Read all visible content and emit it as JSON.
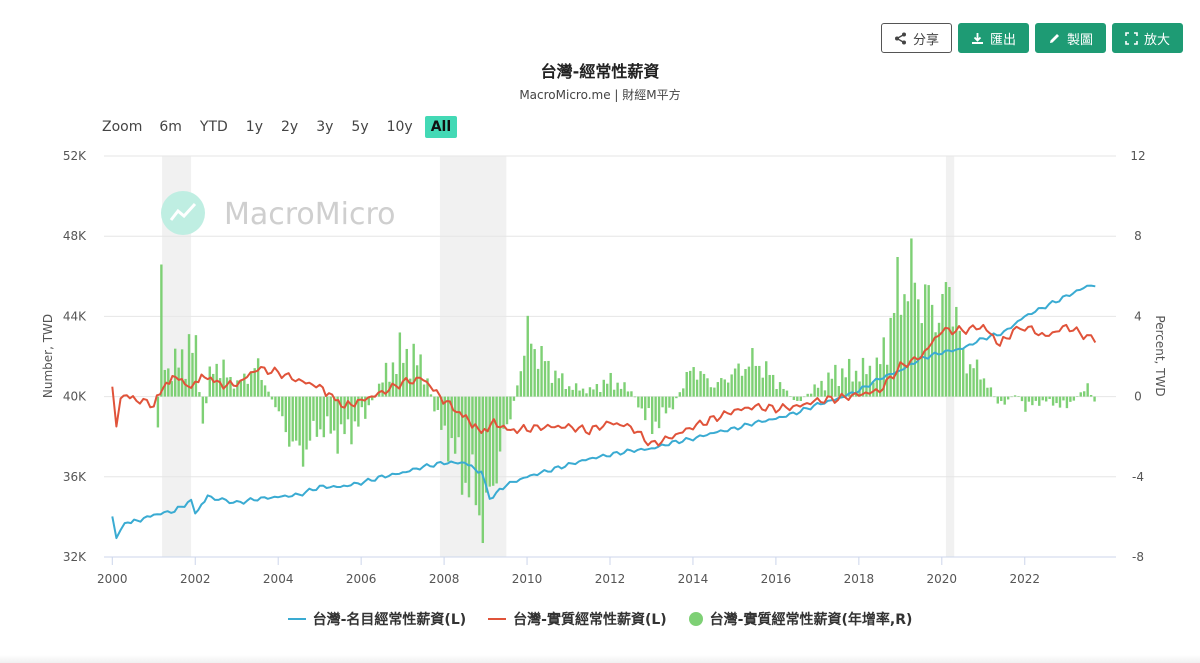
{
  "toolbar": {
    "share_label": "分享",
    "export_label": "匯出",
    "draw_label": "製圖",
    "expand_label": "放大",
    "accent": "#1e9b74"
  },
  "range_selector": {
    "zoom_label": "Zoom",
    "buttons": [
      "6m",
      "YTD",
      "1y",
      "2y",
      "3y",
      "5y",
      "10y",
      "All"
    ],
    "active": "All"
  },
  "watermark": "MacroMicro",
  "chart_data": {
    "type": "line",
    "title": "台灣-經常性薪資",
    "subtitle": "MacroMicro.me | 財經M平方",
    "ylabel_left": "Number, TWD",
    "ylabel_right": "Percent, TWD",
    "ylim_left": [
      32000,
      52000
    ],
    "ylim_right": [
      -8,
      12
    ],
    "yticks_left": [
      "32K",
      "36K",
      "40K",
      "44K",
      "48K",
      "52K"
    ],
    "yticks_right": [
      "-8",
      "-4",
      "0",
      "4",
      "8",
      "12"
    ],
    "xlim": [
      1999.8,
      2024.2
    ],
    "xticks": [
      "2000",
      "2002",
      "2004",
      "2006",
      "2008",
      "2010",
      "2012",
      "2014",
      "2016",
      "2018",
      "2020",
      "2022"
    ],
    "recessions": [
      [
        2001.2,
        2001.9
      ],
      [
        2007.9,
        2009.5
      ],
      [
        2020.1,
        2020.3
      ]
    ],
    "grid": "horizontal",
    "legend_position": "bottom",
    "series": [
      {
        "name": "台灣-名目經常性薪資(L)",
        "axis": "left",
        "kind": "line",
        "color": "#3aabd2",
        "points": [
          [
            2000.0,
            34100
          ],
          [
            2000.1,
            33000
          ],
          [
            2000.3,
            33700
          ],
          [
            2000.6,
            33800
          ],
          [
            2001.0,
            34100
          ],
          [
            2001.5,
            34300
          ],
          [
            2001.9,
            34800
          ],
          [
            2002.0,
            34200
          ],
          [
            2002.3,
            35000
          ],
          [
            2003.0,
            34700
          ],
          [
            2003.5,
            34900
          ],
          [
            2004.0,
            35000
          ],
          [
            2004.5,
            35100
          ],
          [
            2005.0,
            35500
          ],
          [
            2005.5,
            35500
          ],
          [
            2006.0,
            35700
          ],
          [
            2006.5,
            36000
          ],
          [
            2007.0,
            36200
          ],
          [
            2007.5,
            36500
          ],
          [
            2008.0,
            36700
          ],
          [
            2008.5,
            36700
          ],
          [
            2008.9,
            36200
          ],
          [
            2009.1,
            34900
          ],
          [
            2009.5,
            35600
          ],
          [
            2010.0,
            36000
          ],
          [
            2010.5,
            36300
          ],
          [
            2011.0,
            36600
          ],
          [
            2011.5,
            36900
          ],
          [
            2012.0,
            37100
          ],
          [
            2012.5,
            37300
          ],
          [
            2013.0,
            37400
          ],
          [
            2013.5,
            37700
          ],
          [
            2014.0,
            37900
          ],
          [
            2014.5,
            38200
          ],
          [
            2015.0,
            38400
          ],
          [
            2015.5,
            38700
          ],
          [
            2016.0,
            38900
          ],
          [
            2016.5,
            39200
          ],
          [
            2017.0,
            39600
          ],
          [
            2017.5,
            39900
          ],
          [
            2018.0,
            40300
          ],
          [
            2018.5,
            40900
          ],
          [
            2019.0,
            41300
          ],
          [
            2019.5,
            41900
          ],
          [
            2020.0,
            42200
          ],
          [
            2020.5,
            42400
          ],
          [
            2021.0,
            42900
          ],
          [
            2021.5,
            43200
          ],
          [
            2022.0,
            44000
          ],
          [
            2022.5,
            44500
          ],
          [
            2023.0,
            45000
          ],
          [
            2023.5,
            45500
          ],
          [
            2023.7,
            45500
          ]
        ]
      },
      {
        "name": "台灣-實質經常性薪資(L)",
        "axis": "left",
        "kind": "line",
        "color": "#e0533a",
        "points": [
          [
            2000.0,
            40400
          ],
          [
            2000.1,
            38500
          ],
          [
            2000.2,
            40100
          ],
          [
            2000.5,
            39900
          ],
          [
            2001.0,
            39600
          ],
          [
            2001.3,
            40700
          ],
          [
            2001.6,
            41000
          ],
          [
            2001.9,
            40300
          ],
          [
            2002.0,
            40800
          ],
          [
            2002.3,
            41000
          ],
          [
            2002.6,
            40600
          ],
          [
            2003.0,
            40600
          ],
          [
            2003.5,
            41400
          ],
          [
            2004.0,
            41200
          ],
          [
            2004.5,
            40800
          ],
          [
            2005.0,
            40500
          ],
          [
            2005.3,
            40000
          ],
          [
            2005.6,
            39500
          ],
          [
            2006.0,
            39800
          ],
          [
            2006.5,
            40200
          ],
          [
            2007.0,
            40700
          ],
          [
            2007.5,
            40900
          ],
          [
            2007.9,
            40000
          ],
          [
            2008.3,
            39300
          ],
          [
            2008.6,
            38800
          ],
          [
            2008.9,
            38200
          ],
          [
            2009.2,
            38700
          ],
          [
            2009.6,
            38300
          ],
          [
            2010.0,
            38400
          ],
          [
            2010.5,
            38500
          ],
          [
            2011.0,
            38500
          ],
          [
            2011.5,
            38300
          ],
          [
            2012.0,
            38700
          ],
          [
            2012.5,
            38500
          ],
          [
            2013.0,
            37600
          ],
          [
            2013.5,
            38000
          ],
          [
            2014.0,
            38500
          ],
          [
            2014.5,
            38900
          ],
          [
            2015.0,
            39300
          ],
          [
            2015.5,
            39500
          ],
          [
            2016.0,
            39400
          ],
          [
            2016.5,
            39500
          ],
          [
            2017.0,
            39800
          ],
          [
            2017.5,
            39900
          ],
          [
            2018.0,
            40100
          ],
          [
            2018.5,
            40300
          ],
          [
            2019.0,
            41500
          ],
          [
            2019.5,
            42000
          ],
          [
            2020.0,
            43300
          ],
          [
            2020.5,
            43300
          ],
          [
            2021.0,
            43500
          ],
          [
            2021.4,
            42600
          ],
          [
            2021.8,
            43400
          ],
          [
            2022.0,
            43500
          ],
          [
            2022.5,
            43000
          ],
          [
            2023.0,
            43500
          ],
          [
            2023.5,
            43000
          ],
          [
            2023.7,
            42700
          ]
        ]
      },
      {
        "name": "台灣-實質經常性薪資(年增率,R)",
        "axis": "right",
        "kind": "bar",
        "color": "#7ed075",
        "points": [
          [
            2001.1,
            -2.0
          ],
          [
            2001.15,
            5.0
          ],
          [
            2001.3,
            1.2
          ],
          [
            2001.5,
            1.5
          ],
          [
            2001.8,
            2.2
          ],
          [
            2002.0,
            2.5
          ],
          [
            2002.2,
            -1.5
          ],
          [
            2002.4,
            1.8
          ],
          [
            2003.0,
            0.6
          ],
          [
            2003.5,
            1.5
          ],
          [
            2004.0,
            -0.8
          ],
          [
            2004.5,
            -3.0
          ],
          [
            2005.0,
            -1.5
          ],
          [
            2005.5,
            -2.0
          ],
          [
            2006.0,
            -1.2
          ],
          [
            2006.5,
            0.8
          ],
          [
            2007.0,
            2.2
          ],
          [
            2007.5,
            1.5
          ],
          [
            2007.9,
            -1.5
          ],
          [
            2008.2,
            -2.5
          ],
          [
            2008.6,
            -4.5
          ],
          [
            2008.9,
            -5.5
          ],
          [
            2009.0,
            -6.5
          ],
          [
            2009.3,
            -3.0
          ],
          [
            2009.6,
            -1.0
          ],
          [
            2010.0,
            3.0
          ],
          [
            2010.5,
            1.5
          ],
          [
            2011.0,
            0.5
          ],
          [
            2011.5,
            0.3
          ],
          [
            2012.0,
            0.8
          ],
          [
            2012.5,
            0.3
          ],
          [
            2013.0,
            -1.5
          ],
          [
            2013.5,
            -0.5
          ],
          [
            2014.0,
            1.5
          ],
          [
            2014.5,
            0.5
          ],
          [
            2015.0,
            1.2
          ],
          [
            2015.5,
            1.8
          ],
          [
            2016.0,
            0.8
          ],
          [
            2016.5,
            -0.3
          ],
          [
            2017.0,
            0.5
          ],
          [
            2017.5,
            1.2
          ],
          [
            2018.0,
            1.2
          ],
          [
            2018.5,
            1.5
          ],
          [
            2019.0,
            5.5
          ],
          [
            2019.3,
            5.8
          ],
          [
            2019.6,
            4.8
          ],
          [
            2020.0,
            4.0
          ],
          [
            2020.2,
            6.0
          ],
          [
            2020.5,
            2.0
          ],
          [
            2021.0,
            1.0
          ],
          [
            2021.4,
            -0.5
          ],
          [
            2021.8,
            0.2
          ],
          [
            2022.0,
            -0.5
          ],
          [
            2022.5,
            -0.2
          ],
          [
            2023.0,
            -0.5
          ],
          [
            2023.5,
            0.5
          ],
          [
            2023.7,
            -0.3
          ]
        ]
      }
    ]
  }
}
